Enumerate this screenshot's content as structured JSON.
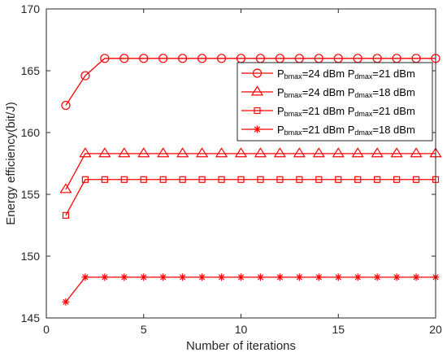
{
  "chart_data": {
    "type": "line",
    "xlabel": "Number of iterations",
    "ylabel": "Energy efficiency(bit/J)",
    "xlim": [
      0,
      20
    ],
    "ylim": [
      145,
      170
    ],
    "xticks": [
      0,
      5,
      10,
      15,
      20
    ],
    "yticks": [
      145,
      150,
      155,
      160,
      165,
      170
    ],
    "grid": false,
    "legend_position": "top-right",
    "color": "#ff0000",
    "x": [
      1,
      2,
      3,
      4,
      5,
      6,
      7,
      8,
      9,
      10,
      11,
      12,
      13,
      14,
      15,
      16,
      17,
      18,
      19,
      20
    ],
    "series": [
      {
        "name": "P_bmax=24 dBm P_dmax=21 dBm",
        "legend": {
          "p1": "P",
          "s1": "bmax",
          "t1": "=24 dBm P",
          "s2": "dmax",
          "t2": "=21 dBm"
        },
        "marker": "circle",
        "values": [
          162.2,
          164.6,
          166.0,
          166.0,
          166.0,
          166.0,
          166.0,
          166.0,
          166.0,
          166.0,
          166.0,
          166.0,
          166.0,
          166.0,
          166.0,
          166.0,
          166.0,
          166.0,
          166.0,
          166.0
        ]
      },
      {
        "name": "P_bmax=24 dBm P_dmax=18 dBm",
        "legend": {
          "p1": "P",
          "s1": "bmax",
          "t1": "=24 dBm P",
          "s2": "dmax",
          "t2": "=18 dBm"
        },
        "marker": "triangle",
        "values": [
          155.4,
          158.3,
          158.3,
          158.3,
          158.3,
          158.3,
          158.3,
          158.3,
          158.3,
          158.3,
          158.3,
          158.3,
          158.3,
          158.3,
          158.3,
          158.3,
          158.3,
          158.3,
          158.3,
          158.3
        ]
      },
      {
        "name": "P_bmax=21 dBm P_dmax=21 dBm",
        "legend": {
          "p1": "P",
          "s1": "bmax",
          "t1": "=21 dBm P",
          "s2": "dmax",
          "t2": "=21 dBm"
        },
        "marker": "square",
        "values": [
          153.3,
          156.2,
          156.2,
          156.2,
          156.2,
          156.2,
          156.2,
          156.2,
          156.2,
          156.2,
          156.2,
          156.2,
          156.2,
          156.2,
          156.2,
          156.2,
          156.2,
          156.2,
          156.2,
          156.2
        ]
      },
      {
        "name": "P_bmax=21 dBm P_dmax=18 dBm",
        "legend": {
          "p1": "P",
          "s1": "bmax",
          "t1": "=21 dBm P",
          "s2": "dmax",
          "t2": "=18 dBm"
        },
        "marker": "asterisk",
        "values": [
          146.3,
          148.3,
          148.3,
          148.3,
          148.3,
          148.3,
          148.3,
          148.3,
          148.3,
          148.3,
          148.3,
          148.3,
          148.3,
          148.3,
          148.3,
          148.3,
          148.3,
          148.3,
          148.3,
          148.3
        ]
      }
    ]
  }
}
